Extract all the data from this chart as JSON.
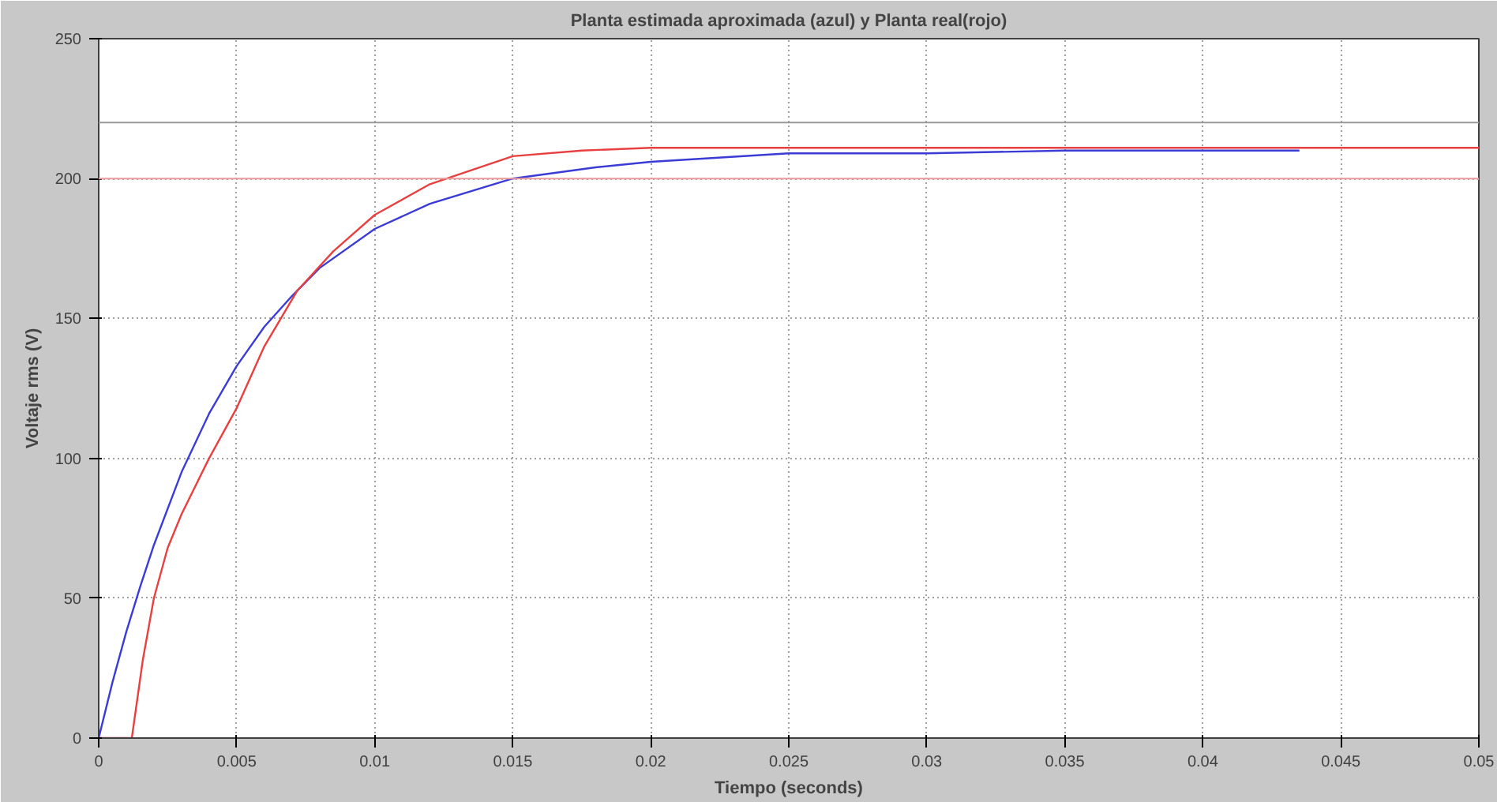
{
  "chart_data": {
    "type": "line",
    "title": "Planta estimada aproximada (azul) y Planta real(rojo)",
    "xlabel": "Tiempo (seconds)",
    "ylabel": "Voltaje rms (V)",
    "xlim": [
      0,
      0.05
    ],
    "ylim": [
      0,
      250
    ],
    "xticks": [
      0,
      0.005,
      0.01,
      0.015,
      0.02,
      0.025,
      0.03,
      0.035,
      0.04,
      0.045,
      0.05
    ],
    "yticks": [
      0,
      50,
      100,
      150,
      200,
      250
    ],
    "grid": true,
    "marker": "none",
    "line_style": "solid",
    "series": [
      {
        "color": "#3b3bd6",
        "x": [
          0,
          0.0005,
          0.001,
          0.0015,
          0.002,
          0.003,
          0.004,
          0.005,
          0.006,
          0.007,
          0.008,
          0.01,
          0.012,
          0.015,
          0.018,
          0.02,
          0.025,
          0.03,
          0.035,
          0.04,
          0.0435
        ],
        "values": [
          0,
          20,
          38,
          54,
          69,
          95,
          116,
          133,
          147,
          158,
          168,
          182,
          191,
          200,
          204,
          206,
          209,
          209,
          210,
          210,
          210
        ]
      },
      {
        "color": "#e84040",
        "x": [
          0,
          0.0012,
          0.0016,
          0.002,
          0.0025,
          0.003,
          0.004,
          0.005,
          0.006,
          0.0072,
          0.0085,
          0.01,
          0.012,
          0.0135,
          0.015,
          0.0175,
          0.02,
          0.025,
          0.03,
          0.04,
          0.05
        ],
        "values": [
          0,
          0,
          28,
          50,
          68,
          80,
          100,
          118,
          140,
          160,
          174,
          187,
          198,
          203,
          208,
          210,
          211,
          211,
          211,
          211,
          211
        ]
      }
    ],
    "ref_lines": [
      {
        "axis": "y",
        "value": 220,
        "color": "#9a9a9a"
      },
      {
        "axis": "y",
        "value": 200,
        "color": "#e89a9a"
      }
    ]
  }
}
